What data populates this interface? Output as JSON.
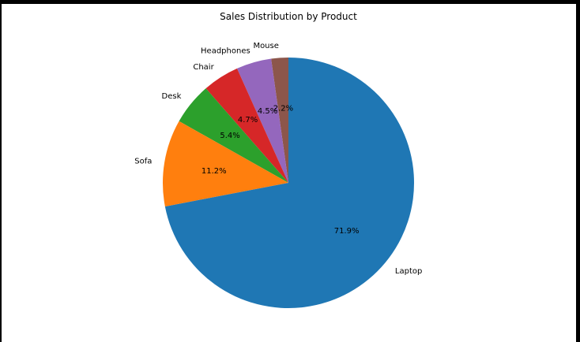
{
  "chart_data": {
    "type": "pie",
    "title": "Sales Distribution by Product",
    "start_angle_deg": 90,
    "direction": "counterclockwise",
    "slices": [
      {
        "label": "Mouse",
        "pct": 2.2,
        "pct_label": "2.2%",
        "color": "#8c564b"
      },
      {
        "label": "Headphones",
        "pct": 4.5,
        "pct_label": "4.5%",
        "color": "#9467bd"
      },
      {
        "label": "Chair",
        "pct": 4.7,
        "pct_label": "4.7%",
        "color": "#d62728"
      },
      {
        "label": "Desk",
        "pct": 5.4,
        "pct_label": "5.4%",
        "color": "#2ca02c"
      },
      {
        "label": "Sofa",
        "pct": 11.2,
        "pct_label": "11.2%",
        "color": "#ff7f0e"
      },
      {
        "label": "Laptop",
        "pct": 71.9,
        "pct_label": "71.9%",
        "color": "#1f77b4"
      }
    ]
  }
}
